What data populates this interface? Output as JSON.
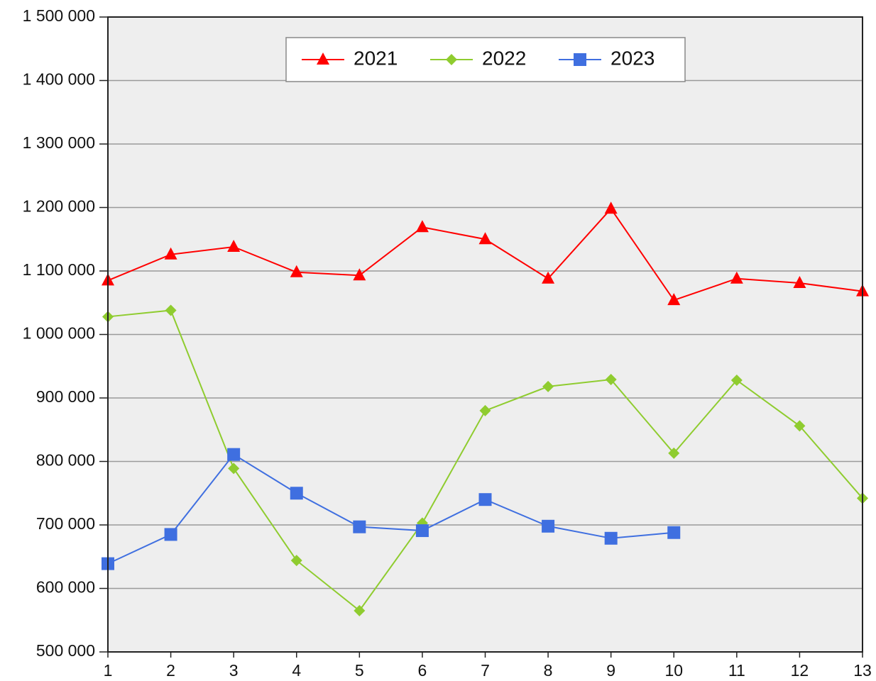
{
  "chart_data": {
    "type": "line",
    "x": [
      1,
      2,
      3,
      4,
      5,
      6,
      7,
      8,
      9,
      10,
      11,
      12,
      13
    ],
    "xlim": [
      1,
      13
    ],
    "xticks": [
      1,
      2,
      3,
      4,
      5,
      6,
      7,
      8,
      9,
      10,
      11,
      12,
      13
    ],
    "ylim": [
      500000,
      1500000
    ],
    "yticks": [
      {
        "value": 500000,
        "label": "500 000"
      },
      {
        "value": 600000,
        "label": "600 000"
      },
      {
        "value": 700000,
        "label": "700 000"
      },
      {
        "value": 800000,
        "label": "800 000"
      },
      {
        "value": 900000,
        "label": "900 000"
      },
      {
        "value": 1000000,
        "label": "1 000 000"
      },
      {
        "value": 1100000,
        "label": "1 100 000"
      },
      {
        "value": 1200000,
        "label": "1 200 000"
      },
      {
        "value": 1300000,
        "label": "1 300 000"
      },
      {
        "value": 1400000,
        "label": "1 400 000"
      },
      {
        "value": 1500000,
        "label": "1 500 000"
      }
    ],
    "grid": true,
    "legend": "top",
    "series": [
      {
        "name": "2021",
        "color": "#ff0000",
        "marker": "triangle",
        "values": [
          1085000,
          1126000,
          1138000,
          1098000,
          1093000,
          1169000,
          1150000,
          1088000,
          1198000,
          1054000,
          1088000,
          1081000,
          1068000
        ]
      },
      {
        "name": "2022",
        "color": "#8fcc2f",
        "marker": "diamond",
        "values": [
          1028000,
          1038000,
          789000,
          644000,
          565000,
          703000,
          880000,
          918000,
          929000,
          813000,
          928000,
          856000,
          742000
        ]
      },
      {
        "name": "2023",
        "color": "#3f6fe0",
        "marker": "square",
        "values": [
          639000,
          685000,
          811000,
          750000,
          697000,
          691000,
          740000,
          698000,
          679000,
          688000,
          null,
          null,
          null
        ]
      }
    ]
  }
}
